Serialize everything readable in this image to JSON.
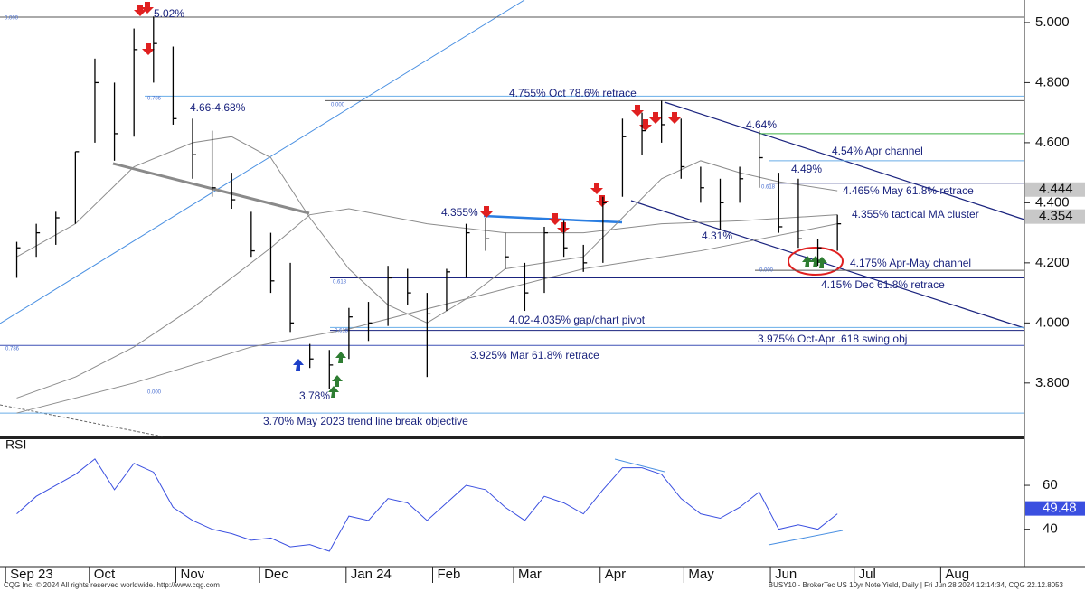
{
  "chart_data": {
    "type": "ohlc",
    "xlim": [
      -2,
      365
    ],
    "xticks": [
      {
        "value": 0,
        "label": "Sep 23"
      },
      {
        "value": 30,
        "label": "Oct"
      },
      {
        "value": 61,
        "label": "Nov"
      },
      {
        "value": 91,
        "label": "Dec"
      },
      {
        "value": 122,
        "label": "Jan 24"
      },
      {
        "value": 153,
        "label": "Feb"
      },
      {
        "value": 182,
        "label": "Mar"
      },
      {
        "value": 213,
        "label": "Apr"
      },
      {
        "value": 243,
        "label": "May"
      },
      {
        "value": 274,
        "label": "Jun"
      },
      {
        "value": 304,
        "label": "Jul"
      },
      {
        "value": 335,
        "label": "Aug"
      }
    ],
    "ylim": [
      3.625,
      5.075
    ],
    "yticks": [
      {
        "value": 3.8,
        "label": "3.800"
      },
      {
        "value": 4.0,
        "label": "4.000"
      },
      {
        "value": 4.2,
        "label": "4.200"
      },
      {
        "value": 4.4,
        "label": "4.400"
      },
      {
        "value": 4.6,
        "label": "4.600"
      },
      {
        "value": 4.8,
        "label": "4.800"
      },
      {
        "value": 5.0,
        "label": "5.000"
      }
    ],
    "bars": {
      "color": "#000000",
      "x": [
        4,
        11,
        18,
        25,
        32,
        39,
        46,
        53,
        60,
        67,
        74,
        81,
        88,
        95,
        102,
        109,
        116,
        123,
        130,
        137,
        144,
        151,
        158,
        165,
        172,
        179,
        186,
        193,
        200,
        207,
        214,
        221,
        228,
        235,
        242,
        249,
        256,
        263,
        270,
        277,
        284,
        291,
        298
      ],
      "high": [
        4.27,
        4.33,
        4.37,
        4.57,
        4.88,
        4.8,
        4.98,
        5.02,
        4.92,
        4.68,
        4.64,
        4.5,
        4.37,
        4.3,
        4.2,
        3.93,
        3.91,
        4.05,
        4.07,
        4.19,
        4.18,
        4.1,
        4.18,
        4.33,
        4.35,
        4.3,
        4.2,
        4.32,
        4.34,
        4.26,
        4.42,
        4.68,
        4.7,
        4.74,
        4.68,
        4.52,
        4.48,
        4.52,
        4.64,
        4.5,
        4.48,
        4.28,
        4.36
      ],
      "low": [
        4.15,
        4.22,
        4.26,
        4.33,
        4.6,
        4.54,
        4.62,
        4.8,
        4.66,
        4.48,
        4.42,
        4.38,
        4.22,
        4.1,
        3.97,
        3.85,
        3.78,
        3.88,
        3.94,
        3.99,
        4.06,
        3.82,
        4.04,
        4.15,
        4.24,
        4.18,
        4.04,
        4.1,
        4.22,
        4.17,
        4.2,
        4.42,
        4.56,
        4.6,
        4.48,
        4.4,
        4.31,
        4.4,
        4.45,
        4.3,
        4.25,
        4.19,
        4.24
      ],
      "close": [
        4.25,
        4.3,
        4.35,
        4.57,
        4.8,
        4.63,
        4.91,
        4.93,
        4.68,
        4.56,
        4.45,
        4.41,
        4.24,
        4.14,
        4.0,
        3.88,
        3.86,
        4.02,
        4.0,
        4.15,
        4.1,
        4.03,
        4.17,
        4.3,
        4.28,
        4.22,
        4.1,
        4.3,
        4.25,
        4.2,
        4.4,
        4.62,
        4.64,
        4.66,
        4.52,
        4.45,
        4.4,
        4.48,
        4.55,
        4.32,
        4.28,
        4.25,
        4.33
      ]
    },
    "moving_averages": [
      {
        "color": "#8c8c8c",
        "x": [
          4,
          25,
          46,
          67,
          81,
          95,
          109,
          123,
          137,
          151,
          165,
          179,
          193,
          207,
          221,
          235,
          249,
          263,
          277,
          298
        ],
        "values": [
          4.22,
          4.33,
          4.52,
          4.6,
          4.62,
          4.55,
          4.35,
          4.18,
          4.06,
          4.0,
          4.08,
          4.18,
          4.2,
          4.22,
          4.35,
          4.48,
          4.54,
          4.5,
          4.47,
          4.44
        ]
      },
      {
        "color": "#8c8c8c",
        "x": [
          4,
          25,
          46,
          67,
          95,
          109,
          123,
          151,
          179,
          207,
          235,
          263,
          298
        ],
        "values": [
          3.75,
          3.82,
          3.92,
          4.05,
          4.25,
          4.36,
          4.38,
          4.33,
          4.3,
          4.3,
          4.33,
          4.34,
          4.36
        ]
      },
      {
        "color": "#8c8c8c",
        "x": [
          4,
          46,
          88,
          123,
          165,
          207,
          249,
          298
        ],
        "values": [
          3.7,
          3.8,
          3.92,
          3.98,
          4.08,
          4.18,
          4.24,
          4.33
        ]
      }
    ],
    "levels": [
      {
        "value": 5.018,
        "color": "#555555"
      },
      {
        "value": 4.755,
        "color": "#6aaee8"
      },
      {
        "value": 4.74,
        "color": "#555555"
      },
      {
        "value": 4.63,
        "color": "#3cb043"
      },
      {
        "value": 4.54,
        "color": "#6aaee8"
      },
      {
        "value": 4.465,
        "color": "#1a237e"
      },
      {
        "value": 4.175,
        "color": "#555555"
      },
      {
        "value": 4.15,
        "color": "#1a237e"
      },
      {
        "value": 3.985,
        "color": "#6aaee8"
      },
      {
        "value": 3.975,
        "color": "#1a237e"
      },
      {
        "value": 3.925,
        "color": "#3f51b5"
      },
      {
        "value": 3.78,
        "color": "#555555"
      },
      {
        "value": 3.7,
        "color": "#6aaee8"
      }
    ],
    "annotations": [
      "5.02%",
      "4.66-4.68%",
      "4.755% Oct 78.6% retrace",
      "4.64%",
      "4.54% Apr channel",
      "4.49%",
      "4.465% May 61.8% retrace",
      "4.355%",
      "4.355% tactical MA cluster",
      "4.31%",
      "4.175% Apr-May channel",
      "4.15% Dec 61.8% retrace",
      "4.02-4.035% gap/chart pivot",
      "3.975% Oct-Apr .618 swing obj",
      "3.925% Mar 61.8% retrace",
      "3.78%",
      "3.70% May 2023 trend line break objective"
    ],
    "fib_labels": [
      "0.000",
      "0.786",
      "0.000",
      "0.618",
      "0.618",
      "0.000",
      "0.786",
      "0.618",
      "0.000"
    ],
    "price_markers": [
      {
        "value": 4.444,
        "label": "4.444"
      },
      {
        "value": 4.354,
        "label": "4.354"
      }
    ],
    "rsi": {
      "title": "RSI",
      "color": "#3a4fe0",
      "x": [
        4,
        11,
        18,
        25,
        32,
        39,
        46,
        53,
        60,
        67,
        74,
        81,
        88,
        95,
        102,
        109,
        116,
        123,
        130,
        137,
        144,
        151,
        158,
        165,
        172,
        179,
        186,
        193,
        200,
        207,
        214,
        221,
        228,
        235,
        242,
        249,
        256,
        263,
        270,
        277,
        284,
        291,
        298
      ],
      "values": [
        47,
        55,
        60,
        65,
        72,
        58,
        70,
        66,
        50,
        44,
        40,
        38,
        35,
        36,
        32,
        33,
        30,
        46,
        44,
        54,
        52,
        44,
        52,
        60,
        58,
        50,
        44,
        55,
        52,
        47,
        58,
        68,
        68,
        65,
        54,
        47,
        45,
        50,
        57,
        40,
        42,
        40,
        47
      ],
      "ylim": [
        23,
        81
      ],
      "yticks": [
        40,
        60
      ],
      "marker": {
        "value": 49.48,
        "label": "49.48"
      }
    },
    "footer_left": "CQG Inc. © 2024 All rights reserved worldwide. http://www.cqg.com",
    "footer_right": "BUSY10 - BrokerTec US 10yr Note Yield, Daily | Fri Jun 28 2024 12:14:34, CQG 22.12.8053"
  }
}
